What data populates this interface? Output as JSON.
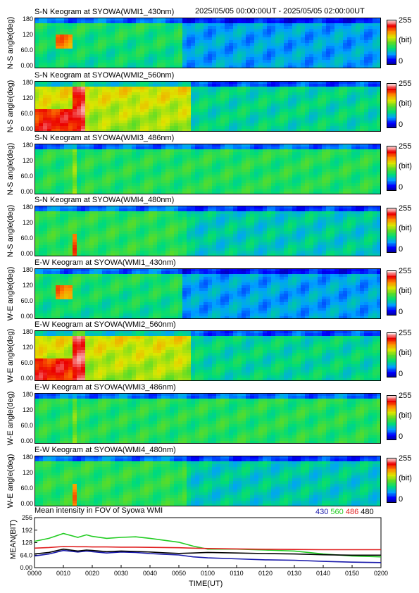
{
  "header": {
    "time_range": "2025/05/05 00:00:00UT - 2025/05/05 02:00:00UT"
  },
  "keograms": [
    {
      "title": "S-N Keogram at SYOWA(WMI1_430nm)",
      "ylabel": "N-S angle(deg)",
      "level": "low",
      "palette": "blue"
    },
    {
      "title": "S-N Keogram at SYOWA(WMI2_560nm)",
      "ylabel": "N-S angle(deg)",
      "level": "high",
      "palette": "green"
    },
    {
      "title": "S-N Keogram at SYOWA(WMI3_486nm)",
      "ylabel": "N-S angle(deg)",
      "level": "flat",
      "palette": "green"
    },
    {
      "title": "S-N Keogram at SYOWA(WMI4_480nm)",
      "ylabel": "N-S angle(deg)",
      "level": "mid",
      "palette": "mixed"
    },
    {
      "title": "E-W Keogram at SYOWA(WMI1_430nm)",
      "ylabel": "W-E angle(deg)",
      "level": "low",
      "palette": "blue"
    },
    {
      "title": "E-W Keogram at SYOWA(WMI2_560nm)",
      "ylabel": "W-E angle(deg)",
      "level": "high",
      "palette": "green"
    },
    {
      "title": "E-W Keogram at SYOWA(WMI3_486nm)",
      "ylabel": "W-E angle(deg)",
      "level": "flat",
      "palette": "green"
    },
    {
      "title": "E-W Keogram at SYOWA(WMI4_480nm)",
      "ylabel": "W-E angle(deg)",
      "level": "mid",
      "palette": "green"
    }
  ],
  "keogram_yticks": [
    "180",
    "120",
    "60.0",
    "0.00"
  ],
  "colorbar": {
    "max": "255",
    "unit": "(bit)",
    "min": "0"
  },
  "colors": {
    "c430": "#1a1aaa",
    "c560": "#22cc22",
    "c486": "#e02020",
    "c480": "#000000"
  },
  "chart_data": {
    "type": "line",
    "title": "Mean intensity in FOV of Syowa WMI",
    "xlabel": "TIME(UT)",
    "ylabel": "MEAN(BIT)",
    "ylim": [
      0,
      256
    ],
    "yticks": [
      "256",
      "192",
      "128",
      "64.0",
      "0.00"
    ],
    "xticks": [
      "0000",
      "0010",
      "0020",
      "0030",
      "0040",
      "0050",
      "0100",
      "0110",
      "0120",
      "0130",
      "0140",
      "0150",
      "0200"
    ],
    "x": [
      0,
      5,
      10,
      15,
      18,
      20,
      25,
      30,
      35,
      40,
      45,
      50,
      55,
      60,
      70,
      80,
      90,
      100,
      110,
      120
    ],
    "series": [
      {
        "name": "430",
        "color": "#1a1aaa",
        "values": [
          60,
          70,
          88,
          80,
          85,
          82,
          75,
          80,
          78,
          72,
          68,
          65,
          55,
          50,
          45,
          40,
          38,
          32,
          28,
          26
        ]
      },
      {
        "name": "560",
        "color": "#22cc22",
        "values": [
          135,
          150,
          175,
          155,
          168,
          160,
          150,
          155,
          158,
          150,
          140,
          130,
          110,
          95,
          95,
          90,
          85,
          70,
          60,
          55
        ]
      },
      {
        "name": "486",
        "color": "#e02020",
        "values": [
          100,
          103,
          108,
          107,
          107,
          106,
          106,
          105,
          105,
          104,
          103,
          102,
          100,
          98,
          96,
          94,
          93,
          92,
          92,
          92
        ]
      },
      {
        "name": "480",
        "color": "#000000",
        "values": [
          70,
          78,
          95,
          85,
          90,
          88,
          82,
          85,
          83,
          80,
          76,
          73,
          75,
          78,
          75,
          72,
          70,
          66,
          64,
          64
        ]
      }
    ]
  }
}
